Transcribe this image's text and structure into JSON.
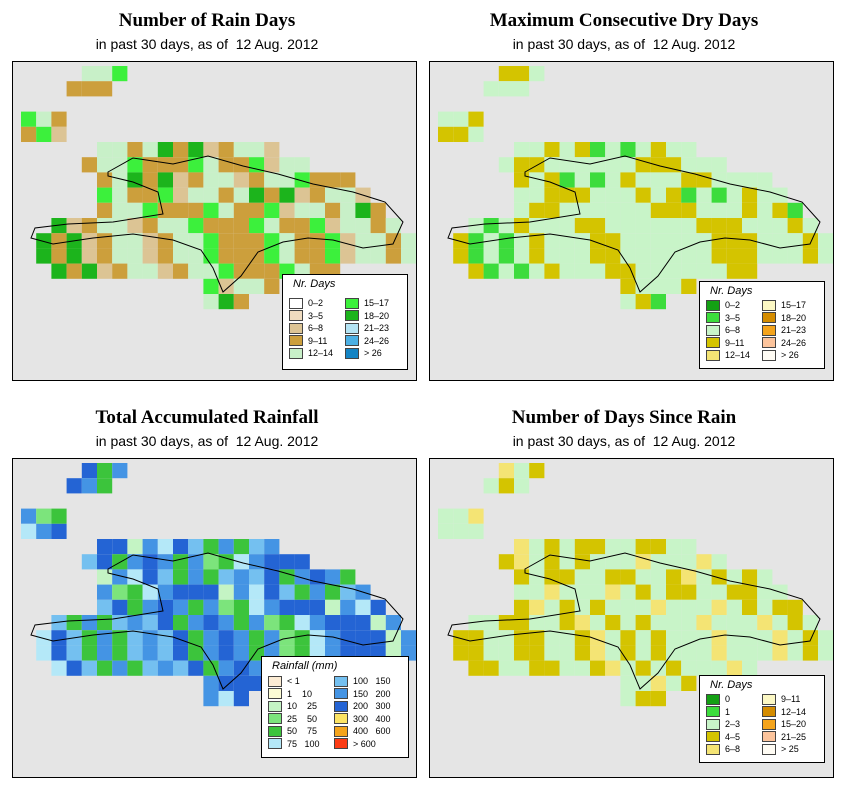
{
  "panels": [
    {
      "id": "rain-days",
      "title": "Number of Rain Days",
      "subtitle": "in past 30 days, as of  12 Aug. 2012",
      "legend": {
        "title": "Nr. Days",
        "entries": [
          {
            "label": "0–2",
            "color": "#ffffff"
          },
          {
            "label": "3–5",
            "color": "#f0dcc0"
          },
          {
            "label": "6–8",
            "color": "#dcc494"
          },
          {
            "label": "9–11",
            "color": "#cc9f3c"
          },
          {
            "label": "12–14",
            "color": "#c8f0c8"
          },
          {
            "label": "15–17",
            "color": "#3cf03c"
          },
          {
            "label": "18–20",
            "color": "#1cb41c"
          },
          {
            "label": "21–23",
            "color": "#b4e4f4"
          },
          {
            "label": "24–26",
            "color": "#4cb0e4"
          },
          {
            "label": "> 26",
            "color": "#1484c4"
          }
        ]
      }
    },
    {
      "id": "dry-days",
      "title": "Maximum Consecutive Dry Days",
      "subtitle": "in past 30 days, as of  12 Aug. 2012",
      "legend": {
        "title": "Nr. Days",
        "entries": [
          {
            "label": "0–2",
            "color": "#14a014"
          },
          {
            "label": "3–5",
            "color": "#3cdc3c"
          },
          {
            "label": "6–8",
            "color": "#c8f4c8"
          },
          {
            "label": "9–11",
            "color": "#d4c400"
          },
          {
            "label": "12–14",
            "color": "#f4e474"
          },
          {
            "label": "15–17",
            "color": "#fcf8c4"
          },
          {
            "label": "18–20",
            "color": "#d48c00"
          },
          {
            "label": "21–23",
            "color": "#f4a41c"
          },
          {
            "label": "24–26",
            "color": "#fcc49c"
          },
          {
            "label": "> 26",
            "color": "#fffcf4"
          }
        ]
      }
    },
    {
      "id": "rainfall",
      "title": "Total Accumulated Rainfall",
      "subtitle": "in past 30 days, as of  12 Aug. 2012",
      "legend": {
        "title": "Rainfall (mm)",
        "entries": [
          {
            "label": "< 1",
            "color": "#fcecd4"
          },
          {
            "label": "1    10",
            "color": "#fcfcd4"
          },
          {
            "label": "10    25",
            "color": "#c4f4c4"
          },
          {
            "label": "25    50",
            "color": "#7ce47c"
          },
          {
            "label": "50    75",
            "color": "#3cc43c"
          },
          {
            "label": "75   100",
            "color": "#b4e8f8"
          },
          {
            "label": "100   150",
            "color": "#74c0f0"
          },
          {
            "label": "150   200",
            "color": "#4494e4"
          },
          {
            "label": "200   300",
            "color": "#2464d4"
          },
          {
            "label": "300   400",
            "color": "#fce464"
          },
          {
            "label": "400   600",
            "color": "#f4a41c"
          },
          {
            "label": "> 600",
            "color": "#fc3c14"
          }
        ]
      }
    },
    {
      "id": "days-since-rain",
      "title": "Number of Days Since Rain",
      "subtitle": "in past 30 days, as of  12 Aug. 2012",
      "legend": {
        "title": "Nr. Days",
        "entries": [
          {
            "label": "0",
            "color": "#14a014"
          },
          {
            "label": "1",
            "color": "#3cdc3c"
          },
          {
            "label": "2–3",
            "color": "#c8f4c8"
          },
          {
            "label": "4–5",
            "color": "#d4c400"
          },
          {
            "label": "6–8",
            "color": "#f4e474"
          },
          {
            "label": "9–11",
            "color": "#fcf8c4"
          },
          {
            "label": "12–14",
            "color": "#d48c00"
          },
          {
            "label": "15–20",
            "color": "#f4a41c"
          },
          {
            "label": "21–25",
            "color": "#fcc49c"
          },
          {
            "label": "> 25",
            "color": "#fffcf4"
          }
        ]
      }
    }
  ]
}
